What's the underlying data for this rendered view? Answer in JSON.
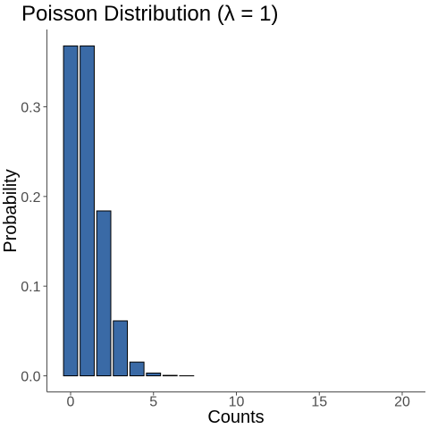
{
  "chart_data": {
    "type": "bar",
    "title": "Poisson Distribution (λ = 1)",
    "xlabel": "Counts",
    "ylabel": "Probability",
    "x": [
      0,
      1,
      2,
      3,
      4,
      5,
      6,
      7,
      8,
      9,
      10,
      11,
      12,
      13,
      14,
      15,
      16,
      17,
      18,
      19,
      20
    ],
    "values": [
      0.3679,
      0.3679,
      0.1839,
      0.0613,
      0.0153,
      0.0031,
      0.0005,
      0.0001,
      0,
      0,
      0,
      0,
      0,
      0,
      0,
      0,
      0,
      0,
      0,
      0,
      0
    ],
    "xlim": [
      -1,
      21
    ],
    "ylim": [
      0,
      0.386
    ],
    "x_ticks": [
      0,
      5,
      10,
      15,
      20
    ],
    "x_tick_labels": [
      "0",
      "5",
      "10",
      "15",
      "20"
    ],
    "y_ticks": [
      0.0,
      0.1,
      0.2,
      0.3
    ],
    "y_tick_labels": [
      "0.0",
      "0.1",
      "0.2",
      "0.3"
    ],
    "grid": false,
    "legend": "none",
    "bar_color": "#3a6aa6",
    "bar_outline": "#000000"
  }
}
